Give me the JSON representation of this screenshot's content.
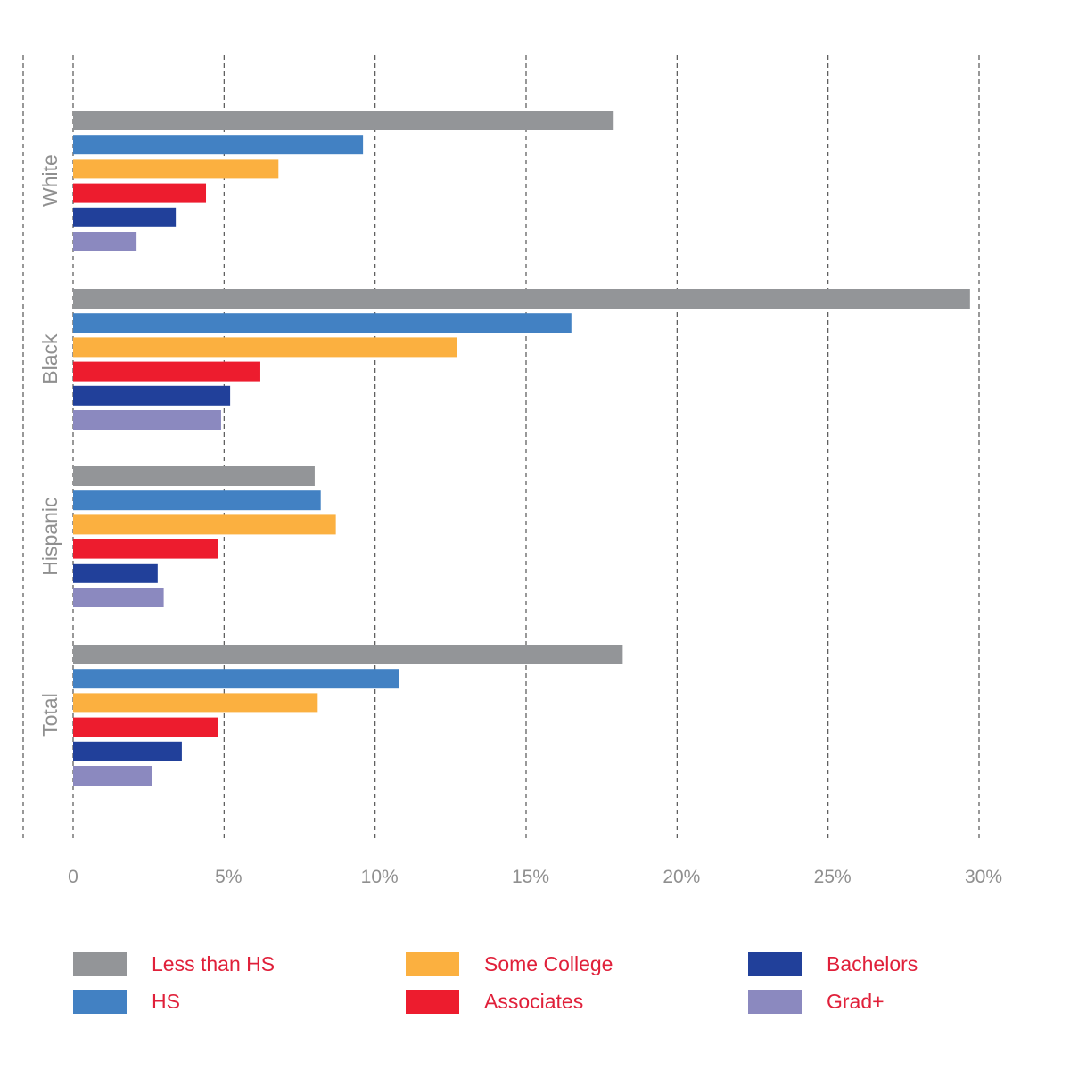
{
  "chart_data": {
    "type": "bar",
    "orientation": "horizontal",
    "title": "",
    "xlabel": "",
    "ylabel": "",
    "xlim": [
      0,
      30
    ],
    "x_ticks": [
      "0",
      "5%",
      "10%",
      "15%",
      "20%",
      "25%",
      "30%"
    ],
    "grid": true,
    "categories": [
      "White",
      "Black",
      "Hispanic",
      "Total"
    ],
    "series": [
      {
        "name": "Less than HS",
        "color": "#939598",
        "values": [
          17.9,
          29.7,
          8.0,
          18.2
        ]
      },
      {
        "name": "HS",
        "color": "#4281c3",
        "values": [
          9.6,
          16.5,
          8.2,
          10.8
        ]
      },
      {
        "name": "Some College",
        "color": "#fbb040",
        "values": [
          6.8,
          12.7,
          8.7,
          8.1
        ]
      },
      {
        "name": "Associates",
        "color": "#ed1c2e",
        "values": [
          4.4,
          6.2,
          4.8,
          4.8
        ]
      },
      {
        "name": "Bachelors",
        "color": "#21409a",
        "values": [
          3.4,
          5.2,
          2.8,
          3.6
        ]
      },
      {
        "name": "Grad+",
        "color": "#8b89bf",
        "values": [
          2.1,
          4.9,
          3.0,
          2.6
        ]
      }
    ],
    "legend_position": "bottom"
  }
}
